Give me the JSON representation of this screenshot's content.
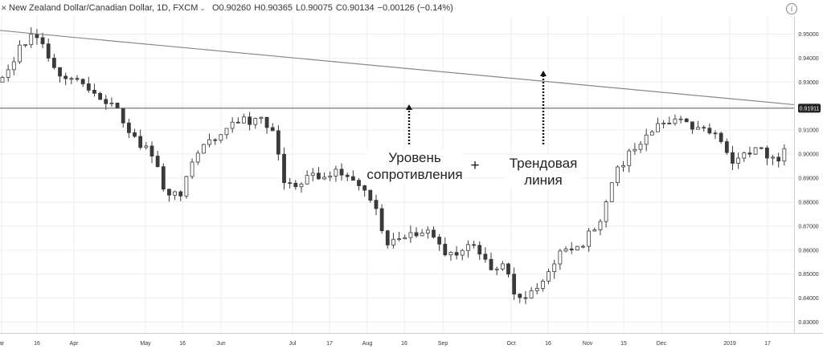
{
  "header": {
    "symbol_icon": "x-icon",
    "title": "New Zealand Dollar/Canadian Dollar, 1D, FXCM",
    "chevron": "⌄",
    "open": "O0.90260",
    "high": "H0.90365",
    "low": "L0.90075",
    "close": "C0.90134",
    "change": "−0.00126 (−0.14%)",
    "info_icon": "i"
  },
  "annotations": {
    "resistance_label": "Уровень\nсопротивления",
    "plus": "+",
    "trendline_label": "Трендовая\nлиния"
  },
  "colors": {
    "up": "#ffffff",
    "down": "#3a3a3a",
    "wick": "#3a3a3a",
    "grid": "#eeeeee",
    "trend": "#888888",
    "resistance": "#555555",
    "badge_bg": "#222222",
    "badge_text": "#ffffff"
  },
  "chart_data": {
    "type": "candlestick",
    "title": "New Zealand Dollar/Canadian Dollar, 1D, FXCM",
    "ylim": [
      0.8255,
      0.9575
    ],
    "y_ticks": [
      "0.95000",
      "0.94000",
      "0.93000",
      "0.92000",
      "0.91000",
      "0.90000",
      "0.89000",
      "0.88000",
      "0.87000",
      "0.86000",
      "0.85000",
      "0.84000",
      "0.83000"
    ],
    "x_ticks": [
      "ar",
      "16",
      "Apr",
      "May",
      "16",
      "Jun",
      "Jul",
      "17",
      "Aug",
      "16",
      "Sep",
      "Oct",
      "16",
      "Nov",
      "15",
      "Dec",
      "2019",
      "17"
    ],
    "resistance_level": 0.91911,
    "resistance_label": "0.91911",
    "trendline": {
      "start": 0.9515,
      "end": 0.9206
    },
    "waypoints": [
      [
        0,
        0.93
      ],
      [
        10,
        0.945
      ],
      [
        18,
        0.95
      ],
      [
        28,
        0.935
      ],
      [
        42,
        0.93
      ],
      [
        58,
        0.92
      ],
      [
        68,
        0.906
      ],
      [
        80,
        0.898
      ],
      [
        85,
        0.885
      ],
      [
        92,
        0.883
      ],
      [
        105,
        0.905
      ],
      [
        120,
        0.912
      ],
      [
        132,
        0.915
      ],
      [
        140,
        0.912
      ],
      [
        148,
        0.886
      ],
      [
        160,
        0.891
      ],
      [
        172,
        0.893
      ],
      [
        183,
        0.889
      ],
      [
        195,
        0.878
      ],
      [
        200,
        0.862
      ],
      [
        210,
        0.866
      ],
      [
        222,
        0.868
      ],
      [
        232,
        0.858
      ],
      [
        245,
        0.863
      ],
      [
        254,
        0.852
      ],
      [
        262,
        0.856
      ],
      [
        268,
        0.837
      ],
      [
        278,
        0.842
      ],
      [
        290,
        0.859
      ],
      [
        300,
        0.86
      ],
      [
        312,
        0.874
      ],
      [
        322,
        0.895
      ],
      [
        335,
        0.907
      ],
      [
        345,
        0.914
      ],
      [
        352,
        0.916
      ],
      [
        365,
        0.91
      ],
      [
        375,
        0.906
      ],
      [
        382,
        0.897
      ],
      [
        392,
        0.902
      ],
      [
        405,
        0.899
      ],
      [
        410,
        0.902
      ]
    ],
    "candle_count": 411,
    "resample_step": 3
  }
}
